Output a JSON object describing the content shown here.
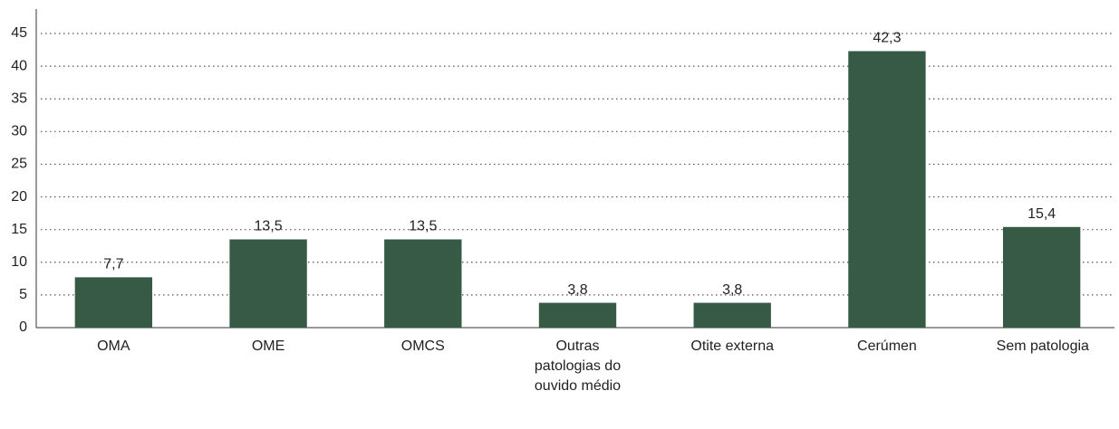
{
  "chart_data": {
    "type": "bar",
    "categories": [
      "OMA",
      "OME",
      "OMCS",
      "Outras patologias do ouvido médio",
      "Otite externa",
      "Cerúmen",
      "Sem patologia"
    ],
    "values": [
      7.7,
      13.5,
      13.5,
      3.8,
      3.8,
      42.3,
      15.4
    ],
    "value_labels": [
      "7,7",
      "13,5",
      "13,5",
      "3,8",
      "3,8",
      "42,3",
      "15,4"
    ],
    "color": "#375a46",
    "ylim": [
      0,
      45
    ],
    "yticks": [
      0,
      5,
      10,
      15,
      20,
      25,
      30,
      35,
      40,
      45
    ],
    "grid": true
  }
}
